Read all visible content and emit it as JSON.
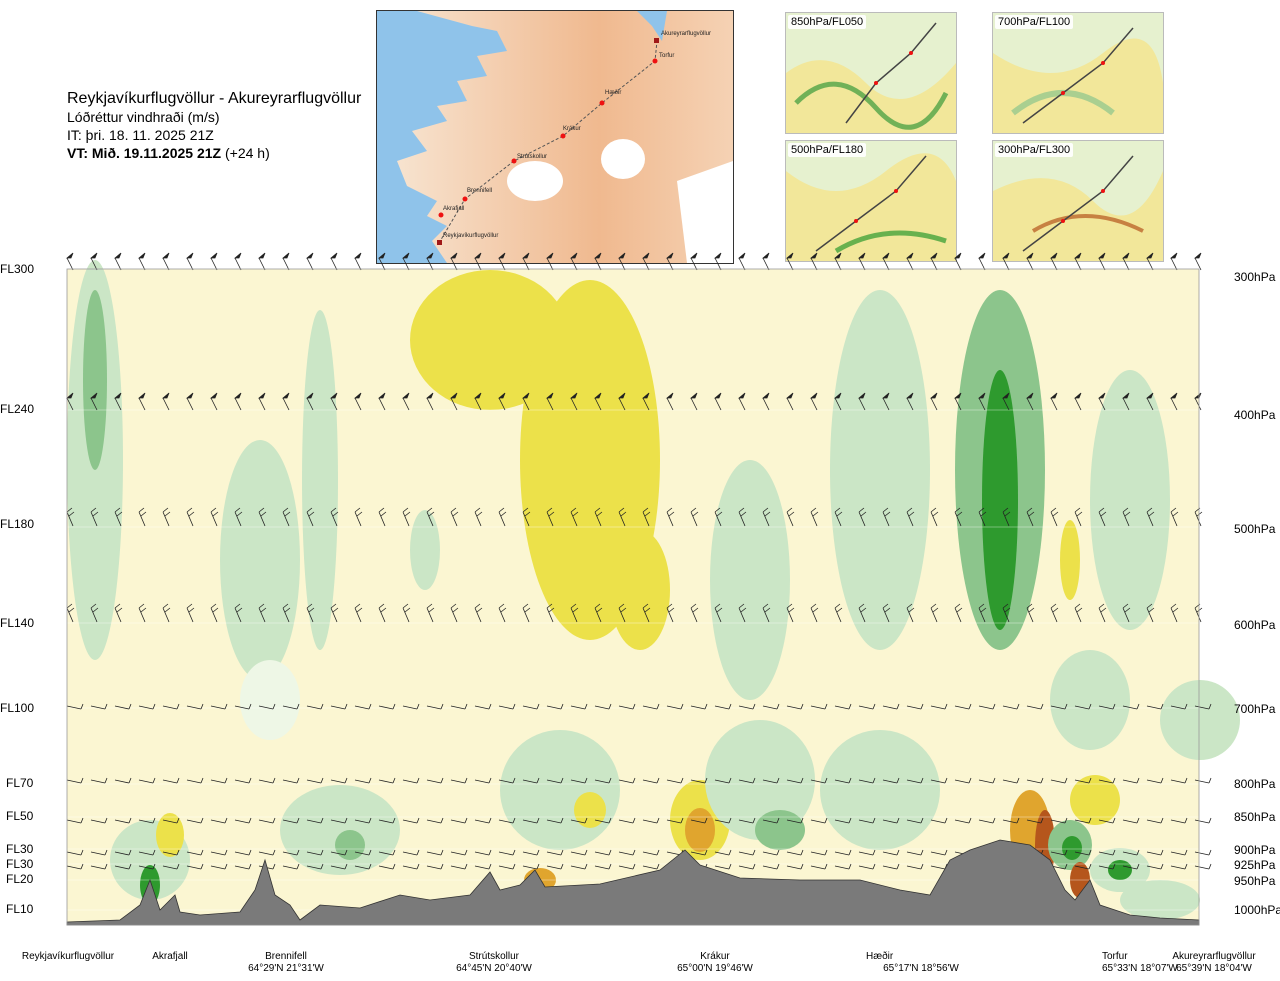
{
  "header": {
    "route": "Reykjavíkurflugvöllur - Akureyrarflugvöllur",
    "parameter": "Lóðréttur vindhraði (m/s)",
    "issue_time": "IT: þri. 18. 11. 2025 21Z",
    "valid_prefix": "VT: Mið. 19.11.2025 21Z",
    "valid_suffix": "(+24 h)"
  },
  "route_map": {
    "points": [
      "Akureyrarflugvöllur",
      "Torfur",
      "Hæðir",
      "Krákur",
      "Strútskollur",
      "Brennifell",
      "Akrafjall",
      "Reykjavíkurflugvöllur"
    ]
  },
  "level_maps": [
    {
      "label": "850hPa/FL050"
    },
    {
      "label": "700hPa/FL100"
    },
    {
      "label": "500hPa/FL180"
    },
    {
      "label": "300hPa/FL300"
    }
  ],
  "colors": {
    "strong_down": "#2e9a2e",
    "mod_down": "#8cc58c",
    "weak_down": "#cbe6c6",
    "near_zero_down": "#eef7e6",
    "near_zero_up": "#fbf6d2",
    "weak_up": "#f7edaa",
    "mod_up": "#ece14a",
    "strong_up": "#e0a52e",
    "very_strong_up": "#b5561c",
    "terrain": "#7a7a7a"
  },
  "chart_data": {
    "type": "heatmap",
    "title": "Lóðréttur vindhraði (m/s)",
    "y_levels": [
      {
        "fl": "FL300",
        "hpa": "300hPa"
      },
      {
        "fl": "FL240",
        "hpa": "400hPa"
      },
      {
        "fl": "FL180",
        "hpa": "500hPa"
      },
      {
        "fl": "FL140",
        "hpa": "600hPa"
      },
      {
        "fl": "FL100",
        "hpa": "700hPa"
      },
      {
        "fl": "FL70",
        "hpa": "800hPa"
      },
      {
        "fl": "FL50",
        "hpa": "850hPa"
      },
      {
        "fl": "FL30",
        "hpa": "900hPa"
      },
      {
        "fl": "FL30",
        "hpa": "925hPa"
      },
      {
        "fl": "FL20",
        "hpa": "950hPa"
      },
      {
        "fl": "FL10",
        "hpa": "1000hPa"
      }
    ],
    "x_points": [
      {
        "name": "Reykjavíkurflugvöllur",
        "coord": ""
      },
      {
        "name": "Akrafjall",
        "coord": ""
      },
      {
        "name": "Brennifell",
        "coord": "64°29'N 21°31'W"
      },
      {
        "name": "Strútskollur",
        "coord": "64°45'N 20°40'W"
      },
      {
        "name": "Krákur",
        "coord": "65°00'N 19°46'W"
      },
      {
        "name": "Hæðir",
        "coord": "65°17'N 18°56'W"
      },
      {
        "name": "Torfur",
        "coord": "65°33'N 18°07'W"
      },
      {
        "name": "Akureyrarflugvöllur",
        "coord": "65°39'N 18°04'W"
      }
    ]
  }
}
